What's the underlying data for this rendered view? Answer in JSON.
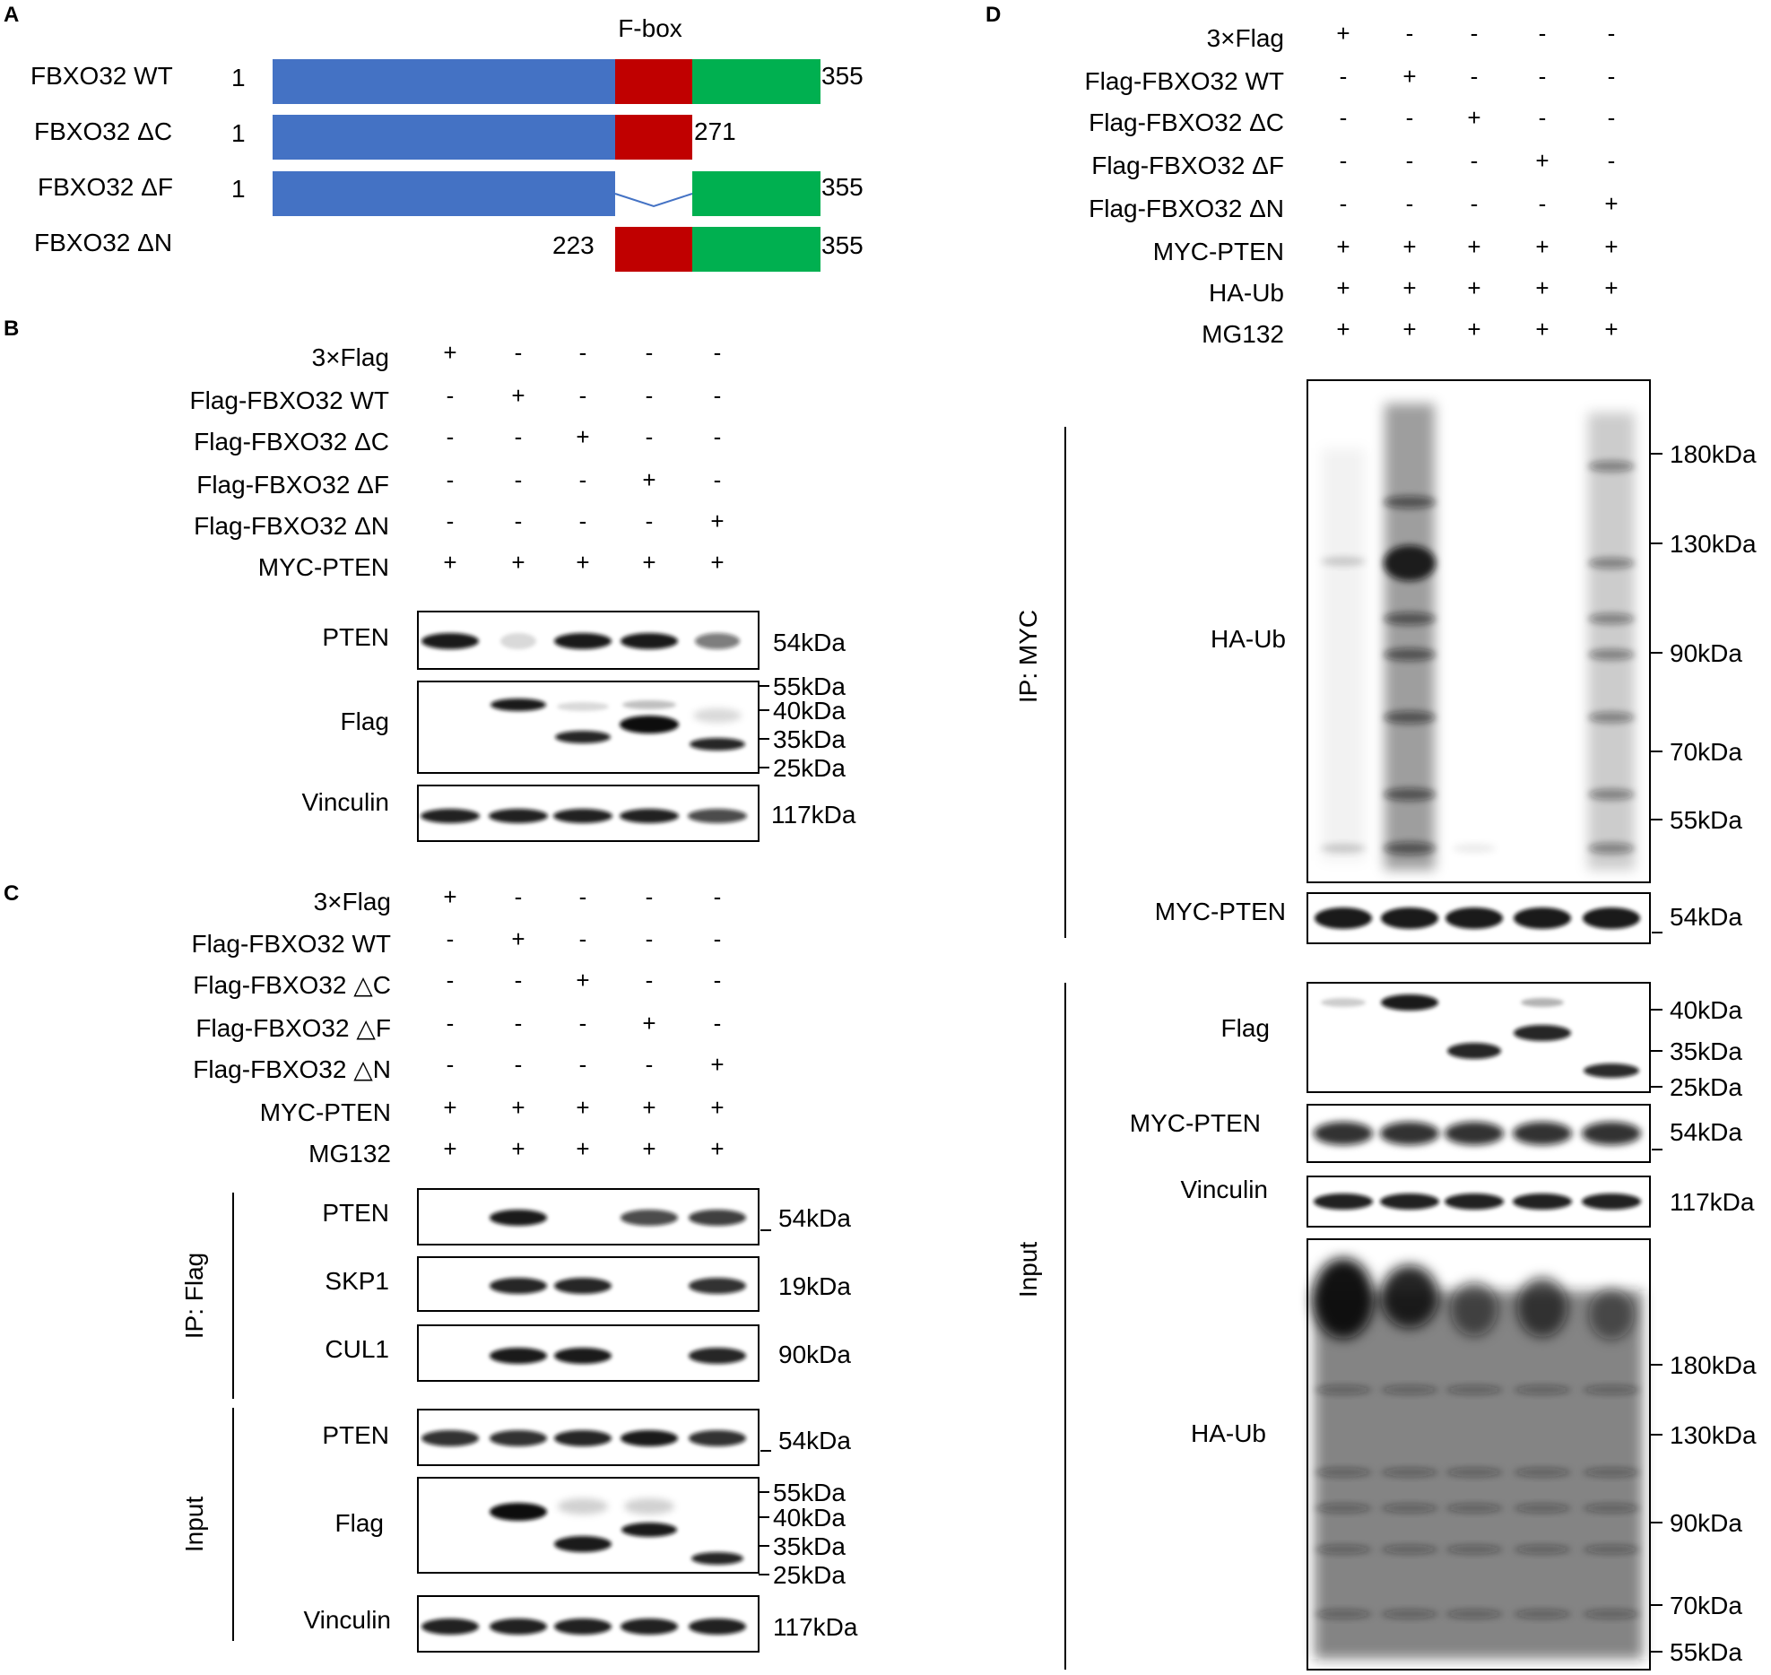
{
  "panel_letters": {
    "a": "A",
    "b": "B",
    "c": "C",
    "d": "D"
  },
  "panel_a": {
    "fbox_label": "F-box",
    "constructs": [
      {
        "name": "FBXO32 WT",
        "start": "1",
        "end": "355"
      },
      {
        "name": "FBXO32 ΔC",
        "start": "1",
        "end": "271"
      },
      {
        "name": "FBXO32 ΔF",
        "start": "1",
        "end": "355"
      },
      {
        "name": "FBXO32 ΔN",
        "start": "223",
        "end": "355"
      }
    ],
    "domain_colors": {
      "n_region": "#4472c4",
      "fbox": "#c00000",
      "c_region": "#00b050",
      "deletion_line": "#4472c4"
    }
  },
  "panel_b": {
    "conditions": [
      {
        "label": "3×Flag",
        "signs": [
          "+",
          "-",
          "-",
          "-",
          "-"
        ]
      },
      {
        "label": "Flag-FBXO32 WT",
        "signs": [
          "-",
          "+",
          "-",
          "-",
          "-"
        ]
      },
      {
        "label": "Flag-FBXO32 ΔC",
        "signs": [
          "-",
          "-",
          "+",
          "-",
          "-"
        ]
      },
      {
        "label": "Flag-FBXO32 ΔF",
        "signs": [
          "-",
          "-",
          "-",
          "+",
          "-"
        ]
      },
      {
        "label": "Flag-FBXO32 ΔN",
        "signs": [
          "-",
          "-",
          "-",
          "-",
          "+"
        ]
      },
      {
        "label": "MYC-PTEN",
        "signs": [
          "+",
          "+",
          "+",
          "+",
          "+"
        ]
      }
    ],
    "blots": [
      {
        "label": "PTEN",
        "markers": [
          "54kDa"
        ]
      },
      {
        "label": "Flag",
        "markers": [
          "55kDa",
          "40kDa",
          "35kDa",
          "25kDa"
        ]
      },
      {
        "label": "Vinculin",
        "markers": [
          "117kDa"
        ]
      }
    ]
  },
  "panel_c": {
    "conditions": [
      {
        "label": "3×Flag",
        "signs": [
          "+",
          "-",
          "-",
          "-",
          "-"
        ]
      },
      {
        "label": "Flag-FBXO32 △C",
        "signs": [
          "-",
          "+",
          "-",
          "-",
          "-"
        ],
        "fix_label": "Flag-FBXO32 WT"
      },
      {
        "label": "Flag-FBXO32 △C",
        "signs": [
          "-",
          "-",
          "+",
          "-",
          "-"
        ]
      },
      {
        "label": "Flag-FBXO32 △F",
        "signs": [
          "-",
          "-",
          "-",
          "+",
          "-"
        ]
      },
      {
        "label": "Flag-FBXO32 △N",
        "signs": [
          "-",
          "-",
          "-",
          "-",
          "+"
        ]
      },
      {
        "label": "MYC-PTEN",
        "signs": [
          "+",
          "+",
          "+",
          "+",
          "+"
        ]
      },
      {
        "label": "MG132",
        "signs": [
          "+",
          "+",
          "+",
          "+",
          "+"
        ]
      }
    ],
    "ip_label": "IP: Flag",
    "input_label": "Input",
    "blots": [
      {
        "label": "PTEN",
        "markers": [
          "54kDa"
        ]
      },
      {
        "label": "SKP1",
        "markers": [
          "19kDa"
        ]
      },
      {
        "label": "CUL1",
        "markers": [
          "90kDa"
        ]
      },
      {
        "label": "PTEN",
        "markers": [
          "54kDa"
        ]
      },
      {
        "label": "Flag",
        "markers": [
          "55kDa",
          "40kDa",
          "35kDa",
          "25kDa"
        ]
      },
      {
        "label": "Vinculin",
        "markers": [
          "117kDa"
        ]
      }
    ]
  },
  "panel_d": {
    "conditions": [
      {
        "label": "3×Flag",
        "signs": [
          "+",
          "-",
          "-",
          "-",
          "-"
        ]
      },
      {
        "label": "Flag-FBXO32 WT",
        "signs": [
          "-",
          "+",
          "-",
          "-",
          "-"
        ]
      },
      {
        "label": "Flag-FBXO32 ΔC",
        "signs": [
          "-",
          "-",
          "+",
          "-",
          "-"
        ]
      },
      {
        "label": "Flag-FBXO32 ΔF",
        "signs": [
          "-",
          "-",
          "-",
          "+",
          "-"
        ]
      },
      {
        "label": "Flag-FBXO32 ΔN",
        "signs": [
          "-",
          "-",
          "-",
          "-",
          "+"
        ]
      },
      {
        "label": "MYC-PTEN",
        "signs": [
          "+",
          "+",
          "+",
          "+",
          "+"
        ]
      },
      {
        "label": "HA-Ub",
        "signs": [
          "+",
          "+",
          "+",
          "+",
          "+"
        ]
      },
      {
        "label": "MG132",
        "signs": [
          "+",
          "+",
          "+",
          "+",
          "+"
        ]
      }
    ],
    "ip_label": "IP: MYC",
    "input_label": "Input",
    "blots": [
      {
        "label": "HA-Ub",
        "markers": [
          "180kDa",
          "130kDa",
          "90kDa",
          "70kDa",
          "55kDa"
        ]
      },
      {
        "label": "MYC-PTEN",
        "markers": [
          "54kDa"
        ]
      },
      {
        "label": "Flag",
        "markers": [
          "40kDa",
          "35kDa",
          "25kDa"
        ]
      },
      {
        "label": "MYC-PTEN",
        "markers": [
          "54kDa"
        ]
      },
      {
        "label": "Vinculin",
        "markers": [
          "117kDa"
        ]
      },
      {
        "label": "HA-Ub",
        "markers": [
          "180kDa",
          "130kDa",
          "90kDa",
          "70kDa",
          "55kDa"
        ]
      }
    ]
  }
}
